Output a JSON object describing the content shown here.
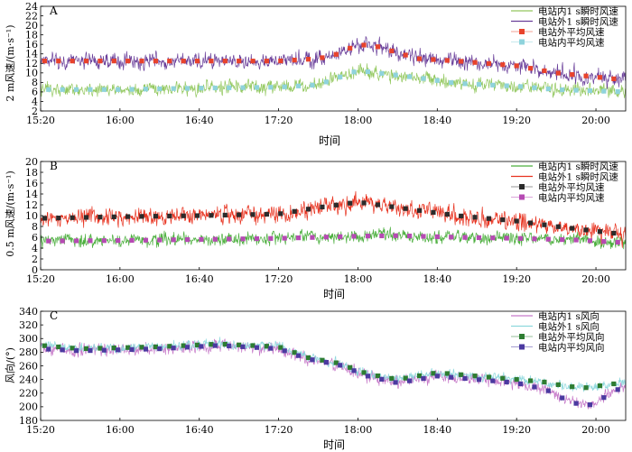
{
  "chart_data": [
    {
      "type": "line",
      "panel_label": "A",
      "title": "",
      "xlabel": "时间",
      "ylabel": "2 m风速/(m·s⁻¹)",
      "x_ticks": [
        "15:20",
        "16:00",
        "16:40",
        "17:20",
        "18:00",
        "18:40",
        "19:20",
        "20:00"
      ],
      "x_range_minutes": [
        920,
        1215
      ],
      "ylim": [
        2,
        24
      ],
      "y_ticks": [
        2,
        4,
        6,
        8,
        10,
        12,
        14,
        16,
        18,
        20,
        22,
        24
      ],
      "legend_position": "top-right",
      "series": [
        {
          "name": "电站内1 s瞬时风速",
          "style": "line",
          "color": "#93c85f",
          "profile": {
            "x": [
              920,
              960,
              1000,
              1040,
              1060,
              1080,
              1090,
              1110,
              1130,
              1160,
              1180,
              1215
            ],
            "y": [
              6.5,
              6.5,
              6.8,
              7.0,
              7.5,
              10.5,
              10.0,
              9.0,
              7.8,
              7.2,
              6.5,
              6.0
            ]
          },
          "noise": 3.0
        },
        {
          "name": "电站外1 s瞬时风速",
          "style": "line",
          "color": "#6a3f9a",
          "profile": {
            "x": [
              920,
              960,
              1000,
              1040,
              1060,
              1070,
              1080,
              1090,
              1110,
              1130,
              1160,
              1180,
              1215
            ],
            "y": [
              12.5,
              12.5,
              12.5,
              12.5,
              13.0,
              14.0,
              16.0,
              15.5,
              13.0,
              12.5,
              11.5,
              10.0,
              8.5
            ]
          },
          "noise": 3.5
        },
        {
          "name": "电站外平均风速",
          "style": "square-marker",
          "color": "#e8432c",
          "profile": {
            "x": [
              920,
              960,
              1000,
              1040,
              1060,
              1070,
              1080,
              1090,
              1110,
              1130,
              1160,
              1180,
              1215
            ],
            "y": [
              12.5,
              12.5,
              12.5,
              12.5,
              13.0,
              14.0,
              16.0,
              15.5,
              13.0,
              12.5,
              11.5,
              10.0,
              8.5
            ]
          }
        },
        {
          "name": "电站内平均风速",
          "style": "square-marker",
          "color": "#8fd3dc",
          "profile": {
            "x": [
              920,
              960,
              1000,
              1040,
              1060,
              1080,
              1090,
              1110,
              1130,
              1160,
              1180,
              1215
            ],
            "y": [
              6.5,
              6.5,
              6.8,
              7.0,
              7.5,
              10.5,
              10.0,
              9.0,
              7.8,
              7.2,
              6.5,
              6.0
            ]
          }
        }
      ],
      "marker_interval_minutes": 7
    },
    {
      "type": "line",
      "panel_label": "B",
      "title": "",
      "xlabel": "时间",
      "ylabel": "0.5 m风速/(m·s⁻¹)",
      "x_ticks": [
        "15:20",
        "16:00",
        "16:40",
        "17:20",
        "18:00",
        "18:40",
        "19:20",
        "20:00"
      ],
      "x_range_minutes": [
        920,
        1215
      ],
      "ylim": [
        0,
        20
      ],
      "y_ticks": [
        0,
        2,
        4,
        6,
        8,
        10,
        12,
        14,
        16,
        18,
        20
      ],
      "legend_position": "top-right",
      "series": [
        {
          "name": "电站内1 s瞬时风速",
          "style": "line",
          "color": "#4caf3e",
          "profile": {
            "x": [
              920,
              960,
              1000,
              1040,
              1060,
              1080,
              1100,
              1130,
              1160,
              1190,
              1215
            ],
            "y": [
              5.3,
              5.4,
              5.6,
              5.8,
              6.0,
              6.2,
              6.3,
              6.0,
              5.8,
              5.5,
              5.0
            ]
          },
          "noise": 2.5
        },
        {
          "name": "电站外1 s瞬时风速",
          "style": "line",
          "color": "#e8321f",
          "profile": {
            "x": [
              920,
              960,
              1000,
              1040,
              1060,
              1080,
              1090,
              1110,
              1130,
              1160,
              1180,
              1215
            ],
            "y": [
              9.5,
              9.8,
              10.0,
              10.3,
              11.5,
              12.5,
              12.0,
              11.0,
              10.0,
              9.0,
              8.0,
              6.5
            ]
          },
          "noise": 3.5
        },
        {
          "name": "电站外平均风速",
          "style": "square-marker",
          "color": "#2b2b2b",
          "profile": {
            "x": [
              920,
              960,
              1000,
              1040,
              1060,
              1080,
              1090,
              1110,
              1130,
              1160,
              1180,
              1215
            ],
            "y": [
              9.5,
              9.8,
              10.0,
              10.3,
              11.5,
              12.5,
              12.0,
              11.0,
              10.0,
              9.0,
              8.0,
              6.5
            ]
          }
        },
        {
          "name": "电站内平均风速",
          "style": "square-marker",
          "color": "#b64ab3",
          "profile": {
            "x": [
              920,
              960,
              1000,
              1040,
              1060,
              1080,
              1100,
              1130,
              1160,
              1190,
              1215
            ],
            "y": [
              5.3,
              5.4,
              5.6,
              5.8,
              6.0,
              6.2,
              6.3,
              6.0,
              5.8,
              5.5,
              5.0
            ]
          }
        }
      ],
      "marker_interval_minutes": 7
    },
    {
      "type": "line",
      "panel_label": "C",
      "title": "",
      "xlabel": "时间",
      "ylabel": "风向/(°)",
      "x_ticks": [
        "15:20",
        "16:00",
        "16:40",
        "17:20",
        "18:00",
        "18:40",
        "19:20",
        "20:00"
      ],
      "x_range_minutes": [
        920,
        1215
      ],
      "ylim": [
        180,
        340
      ],
      "y_ticks": [
        180,
        200,
        220,
        240,
        260,
        280,
        300,
        320,
        340
      ],
      "legend_position": "top-right",
      "series": [
        {
          "name": "电站内1 s风向",
          "style": "line",
          "color": "#c77ac9",
          "profile": {
            "x": [
              920,
              940,
              980,
              1010,
              1040,
              1055,
              1070,
              1085,
              1100,
              1120,
              1140,
              1160,
              1175,
              1185,
              1195,
              1205,
              1215
            ],
            "y": [
              285,
              282,
              285,
              290,
              285,
              270,
              262,
              245,
              235,
              245,
              240,
              235,
              225,
              210,
              200,
              215,
              232
            ]
          },
          "noise": 18
        },
        {
          "name": "电站外1 s风向",
          "style": "line",
          "color": "#8ed8dd",
          "profile": {
            "x": [
              920,
              940,
              980,
              1010,
              1040,
              1055,
              1070,
              1085,
              1100,
              1120,
              1140,
              1160,
              1175,
              1185,
              1195,
              1205,
              1215
            ],
            "y": [
              290,
              285,
              288,
              292,
              288,
              272,
              264,
              248,
              240,
              250,
              245,
              240,
              236,
              230,
              228,
              232,
              236
            ]
          },
          "noise": 14
        },
        {
          "name": "电站外平均风向",
          "style": "square-marker",
          "color": "#2e7d32",
          "profile": {
            "x": [
              920,
              940,
              980,
              1010,
              1040,
              1055,
              1070,
              1085,
              1100,
              1120,
              1140,
              1160,
              1175,
              1185,
              1195,
              1205,
              1215
            ],
            "y": [
              290,
              285,
              288,
              292,
              288,
              272,
              264,
              248,
              240,
              250,
              245,
              240,
              236,
              230,
              228,
              232,
              236
            ]
          }
        },
        {
          "name": "电站内平均风向",
          "style": "square-marker",
          "color": "#4b3aa0",
          "profile": {
            "x": [
              920,
              940,
              980,
              1010,
              1040,
              1055,
              1070,
              1085,
              1100,
              1120,
              1140,
              1160,
              1175,
              1185,
              1195,
              1205,
              1215
            ],
            "y": [
              285,
              282,
              285,
              290,
              285,
              270,
              262,
              245,
              235,
              245,
              240,
              235,
              225,
              210,
              200,
              215,
              232
            ]
          }
        }
      ],
      "marker_interval_minutes": 7
    }
  ]
}
